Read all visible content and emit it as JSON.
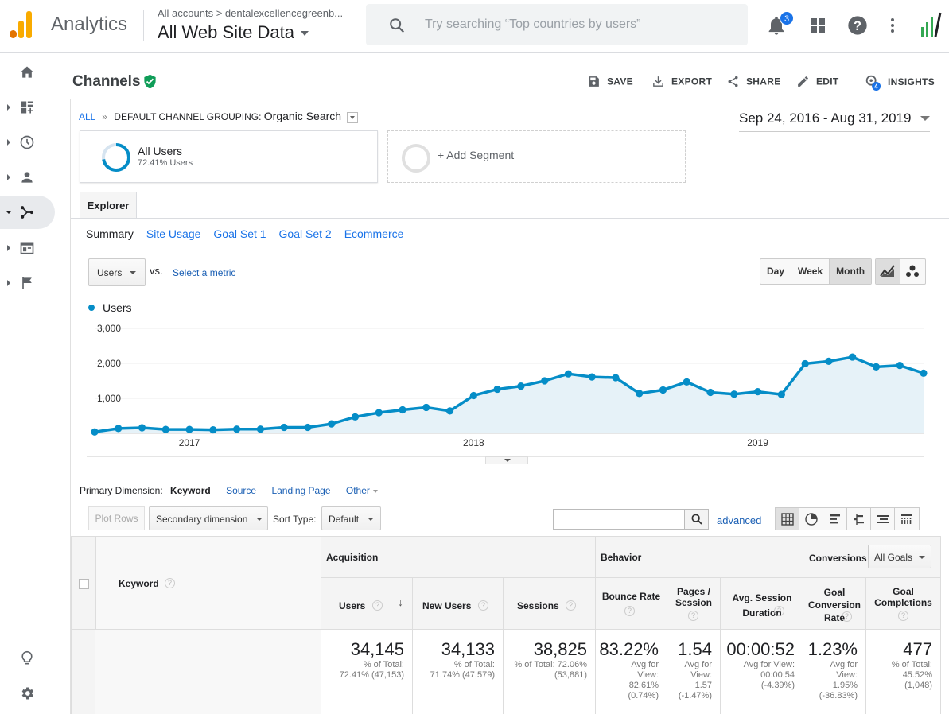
{
  "topbar": {
    "app_name": "Analytics",
    "account_path": "All accounts  >  dentalexcellencegreenb...",
    "view_name": "All Web Site Data",
    "search_placeholder": "Try searching “Top countries by users”",
    "notification_count": "3",
    "colors": {
      "logo_orange": "#f9ab00",
      "logo_dark": "#e37400",
      "accent": "#1a73e8"
    }
  },
  "leftnav": {
    "items": [
      "home-icon",
      "customization-icon",
      "realtime-icon",
      "audience-icon",
      "acquisition-icon",
      "behavior-icon",
      "conversions-icon"
    ],
    "active": "acquisition-icon",
    "bottom": [
      "lightbulb-icon",
      "settings-icon"
    ]
  },
  "header": {
    "title": "Channels",
    "actions": {
      "save": "SAVE",
      "export": "EXPORT",
      "share": "SHARE",
      "edit": "EDIT",
      "insights": "INSIGHTS",
      "insights_badge": "4"
    }
  },
  "breadcrumb": {
    "all": "ALL",
    "sep": "»",
    "grouping_label": "DEFAULT CHANNEL GROUPING:",
    "grouping_value": "Organic Search"
  },
  "date_range": "Sep 24, 2016 - Aug 31, 2019",
  "segments": {
    "active_name": "All Users",
    "active_sub": "72.41% Users",
    "active_fraction": 0.7241,
    "add_label": "+ Add Segment"
  },
  "tabs": {
    "explorer": "Explorer",
    "subtabs": [
      "Summary",
      "Site Usage",
      "Goal Set 1",
      "Goal Set 2",
      "Ecommerce"
    ]
  },
  "chart_controls": {
    "metric": "Users",
    "vs": "vs.",
    "select_metric": "Select a metric",
    "granularity": [
      "Day",
      "Week",
      "Month"
    ],
    "granularity_selected": "Month"
  },
  "chart_data": {
    "type": "area",
    "series": [
      {
        "name": "Users",
        "color": "#058dc7",
        "x": [
          "2016-09",
          "2016-10",
          "2016-11",
          "2016-12",
          "2017-01",
          "2017-02",
          "2017-03",
          "2017-04",
          "2017-05",
          "2017-06",
          "2017-07",
          "2017-08",
          "2017-09",
          "2017-10",
          "2017-11",
          "2017-12",
          "2018-01",
          "2018-02",
          "2018-03",
          "2018-04",
          "2018-05",
          "2018-06",
          "2018-07",
          "2018-08",
          "2018-09",
          "2018-10",
          "2018-11",
          "2018-12",
          "2019-01",
          "2019-02",
          "2019-03",
          "2019-04",
          "2019-05",
          "2019-06",
          "2019-07",
          "2019-08"
        ],
        "values": [
          40,
          140,
          160,
          110,
          110,
          100,
          120,
          120,
          170,
          170,
          270,
          470,
          590,
          670,
          740,
          640,
          1080,
          1260,
          1350,
          1500,
          1700,
          1610,
          1590,
          1140,
          1240,
          1470,
          1170,
          1120,
          1190,
          1110,
          1990,
          2060,
          2180,
          1900,
          1940,
          1720
        ]
      }
    ],
    "x_tick_labels": [
      "2017",
      "2018",
      "2019"
    ],
    "y_tick_labels": [
      "1,000",
      "2,000",
      "3,000"
    ],
    "ylim": [
      0,
      3000
    ],
    "grid": true
  },
  "primary_dimension": {
    "label": "Primary Dimension:",
    "current": "Keyword",
    "options": [
      "Source",
      "Landing Page"
    ],
    "other": "Other"
  },
  "table_toolbar": {
    "plot_rows": "Plot Rows",
    "secondary_dimension": "Secondary dimension",
    "sort_type_label": "Sort Type:",
    "sort_type": "Default",
    "advanced": "advanced"
  },
  "table": {
    "dimension_header": "Keyword",
    "groups": {
      "acquisition": "Acquisition",
      "behavior": "Behavior",
      "conversions": "Conversions",
      "goal_select": "All Goals"
    },
    "columns": [
      "Users",
      "New Users",
      "Sessions",
      "Bounce Rate",
      "Pages / Session",
      "Avg. Session Duration",
      "Goal Conversion Rate",
      "Goal Completions"
    ],
    "totals": [
      {
        "value": "34,145",
        "sub": "% of Total: 72.41% (47,153)"
      },
      {
        "value": "34,133",
        "sub": "% of Total: 71.74% (47,579)"
      },
      {
        "value": "38,825",
        "sub": "% of Total: 72.06% (53,881)"
      },
      {
        "value": "83.22%",
        "sub": "Avg for View: 82.61% (0.74%)"
      },
      {
        "value": "1.54",
        "sub": "Avg for View: 1.57 (-1.47%)"
      },
      {
        "value": "00:00:52",
        "sub": "Avg for View: 00:00:54 (-4.39%)"
      },
      {
        "value": "1.23%",
        "sub": "Avg for View: 1.95% (-36.83%)"
      },
      {
        "value": "477",
        "sub": "% of Total: 45.52% (1,048)"
      }
    ]
  }
}
